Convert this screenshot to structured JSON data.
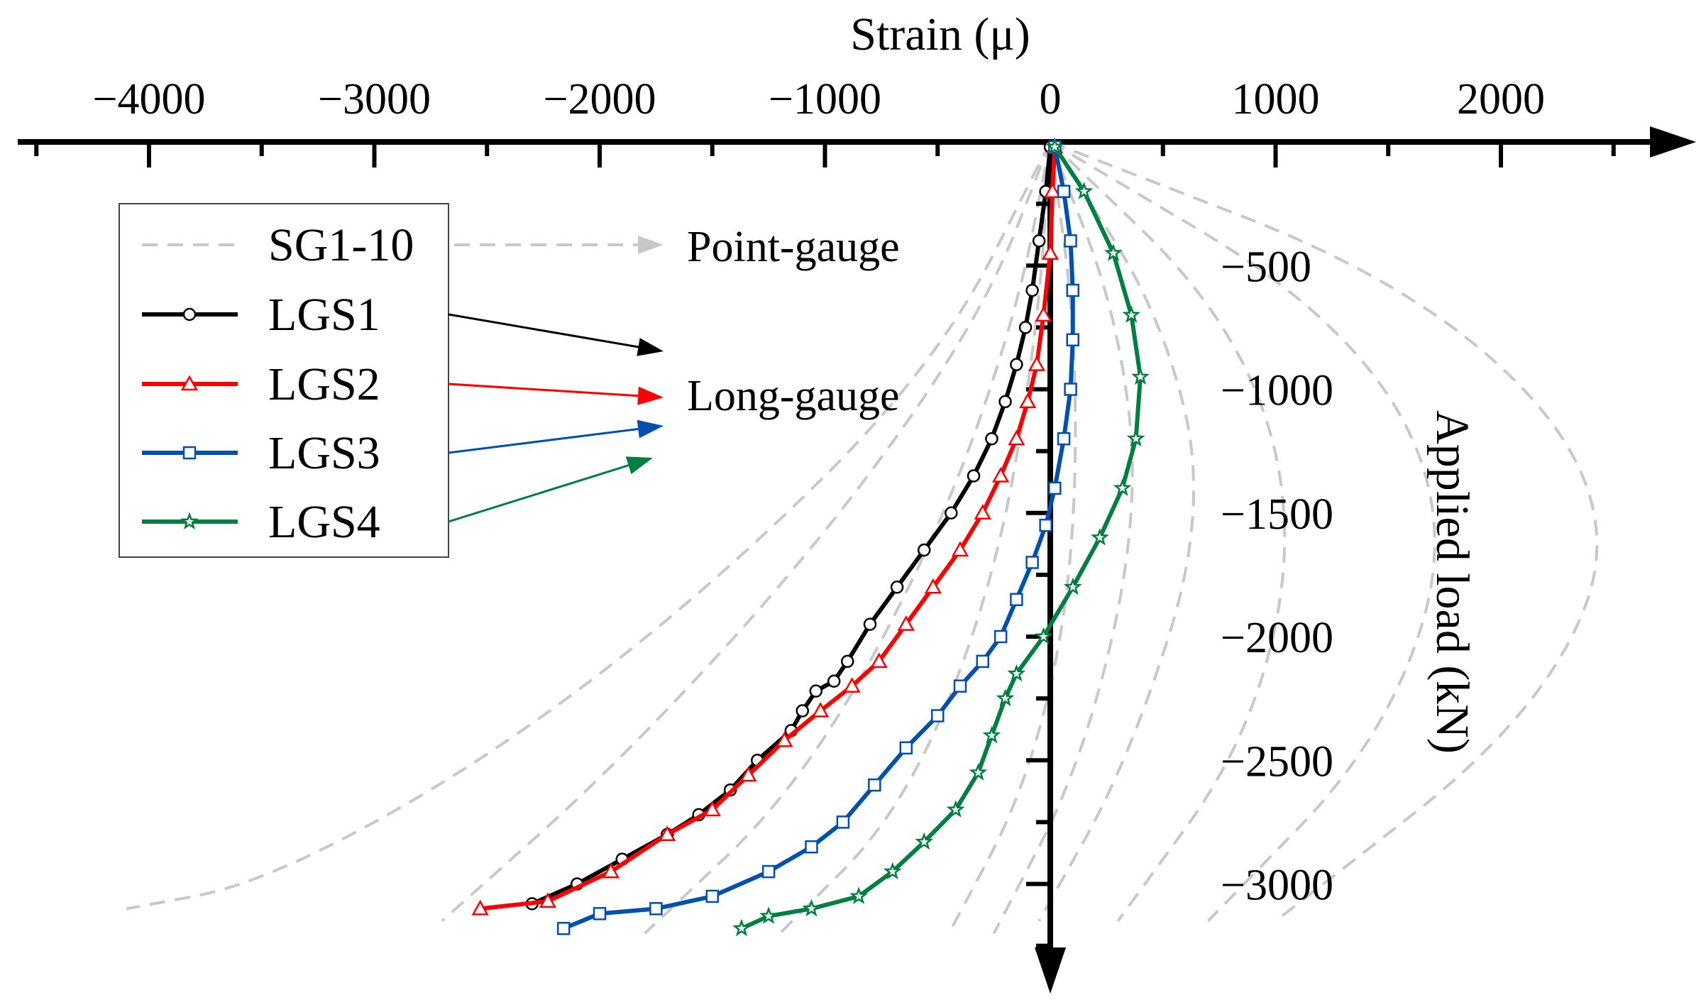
{
  "chart_data": {
    "type": "line",
    "xlabel": "Strain (μ)",
    "ylabel": "Applied load (kN)",
    "xlim": [
      -4600,
      2800
    ],
    "ylim": [
      -3400,
      0
    ],
    "x_ticks": [
      -4000,
      -3000,
      -2000,
      -1000,
      0,
      1000,
      2000
    ],
    "x_tick_labels": [
      "−4000",
      "−3000",
      "−2000",
      "−1000",
      "0",
      "1000",
      "2000"
    ],
    "y_ticks": [
      -500,
      -1000,
      -1500,
      -2000,
      -2500,
      -3000
    ],
    "y_tick_labels": [
      "−500",
      "−1000",
      "−1500",
      "−2000",
      "−2500",
      "−3000"
    ],
    "legend": {
      "position": "top-left",
      "entries": [
        "SG1-10",
        "LGS1",
        "LGS2",
        "LGS3",
        "LGS4"
      ]
    },
    "annotations": [
      "Point-gauge",
      "Long-gauge"
    ],
    "series": [
      {
        "name": "LGS1",
        "color": "#000000",
        "marker": "circle",
        "x": [
          0,
          -20,
          -50,
          -80,
          -110,
          -150,
          -200,
          -260,
          -340,
          -440,
          -560,
          -680,
          -800,
          -900,
          -960,
          -1040,
          -1100,
          -1150,
          -1300,
          -1420,
          -1560,
          -1700,
          -1900,
          -2100,
          -2300
        ],
        "y": [
          -20,
          -200,
          -400,
          -600,
          -750,
          -900,
          -1050,
          -1200,
          -1350,
          -1500,
          -1650,
          -1800,
          -1950,
          -2100,
          -2180,
          -2220,
          -2300,
          -2380,
          -2500,
          -2620,
          -2720,
          -2800,
          -2900,
          -3000,
          -3080
        ]
      },
      {
        "name": "LGS2",
        "color": "#ff0000",
        "marker": "triangle",
        "x": [
          20,
          10,
          0,
          -30,
          -60,
          -100,
          -150,
          -220,
          -300,
          -400,
          -520,
          -640,
          -760,
          -880,
          -1020,
          -1180,
          -1340,
          -1500,
          -1700,
          -1950,
          -2230,
          -2530
        ],
        "y": [
          -20,
          -200,
          -450,
          -700,
          -900,
          -1050,
          -1200,
          -1350,
          -1500,
          -1650,
          -1800,
          -1950,
          -2100,
          -2200,
          -2300,
          -2420,
          -2560,
          -2700,
          -2800,
          -2950,
          -3070,
          -3100
        ]
      },
      {
        "name": "LGS3",
        "color": "#0050b0",
        "marker": "square",
        "x": [
          20,
          60,
          90,
          100,
          100,
          90,
          60,
          20,
          -20,
          -80,
          -150,
          -220,
          -300,
          -400,
          -500,
          -640,
          -780,
          -920,
          -1060,
          -1250,
          -1500,
          -1750,
          -2000,
          -2160
        ],
        "y": [
          -20,
          -200,
          -400,
          -600,
          -800,
          -1000,
          -1200,
          -1400,
          -1550,
          -1700,
          -1850,
          -2000,
          -2100,
          -2200,
          -2320,
          -2450,
          -2600,
          -2750,
          -2850,
          -2950,
          -3050,
          -3100,
          -3120,
          -3180
        ]
      },
      {
        "name": "LGS4",
        "color": "#008040",
        "marker": "star",
        "x": [
          20,
          150,
          280,
          360,
          400,
          380,
          320,
          220,
          100,
          -30,
          -150,
          -200,
          -260,
          -320,
          -420,
          -560,
          -700,
          -850,
          -1060,
          -1250,
          -1370
        ],
        "y": [
          -20,
          -200,
          -450,
          -700,
          -950,
          -1200,
          -1400,
          -1600,
          -1800,
          -2000,
          -2150,
          -2250,
          -2400,
          -2550,
          -2700,
          -2830,
          -2950,
          -3050,
          -3100,
          -3130,
          -3180
        ]
      }
    ],
    "reference_series": [
      {
        "name": "SG1-10",
        "x": [
          0,
          -500,
          -1500,
          -2500,
          -3500,
          -4100
        ],
        "y": [
          0,
          -900,
          -1800,
          -2500,
          -3000,
          -3100
        ]
      },
      {
        "name": "SG1-10",
        "x": [
          0,
          -300,
          -1000,
          -1900,
          -2700
        ],
        "y": [
          0,
          -700,
          -1600,
          -2500,
          -3150
        ]
      },
      {
        "name": "SG1-10",
        "x": [
          0,
          -150,
          -500,
          -1100,
          -1800
        ],
        "y": [
          0,
          -700,
          -1600,
          -2600,
          -3200
        ]
      },
      {
        "name": "SG1-10",
        "x": [
          0,
          -60,
          -250,
          -650,
          -1200
        ],
        "y": [
          0,
          -800,
          -1800,
          -2700,
          -3200
        ]
      },
      {
        "name": "SG1-10",
        "x": [
          0,
          120,
          100,
          -100,
          -450
        ],
        "y": [
          0,
          -800,
          -1800,
          -2600,
          -3200
        ]
      },
      {
        "name": "SG1-10",
        "x": [
          0,
          300,
          400,
          150,
          -250
        ],
        "y": [
          0,
          -700,
          -1500,
          -2500,
          -3200
        ]
      },
      {
        "name": "SG1-10",
        "x": [
          0,
          500,
          700,
          350,
          -50
        ],
        "y": [
          0,
          -700,
          -1500,
          -2500,
          -3150
        ]
      },
      {
        "name": "SG1-10",
        "x": [
          0,
          800,
          1100,
          900,
          300
        ],
        "y": [
          0,
          -700,
          -1500,
          -2400,
          -3150
        ]
      },
      {
        "name": "SG1-10",
        "x": [
          0,
          1300,
          1800,
          1500,
          700
        ],
        "y": [
          0,
          -700,
          -1500,
          -2400,
          -3150
        ]
      },
      {
        "name": "SG1-10",
        "x": [
          0,
          1700,
          2550,
          2200,
          1000
        ],
        "y": [
          0,
          -600,
          -1450,
          -2300,
          -3150
        ]
      }
    ]
  }
}
